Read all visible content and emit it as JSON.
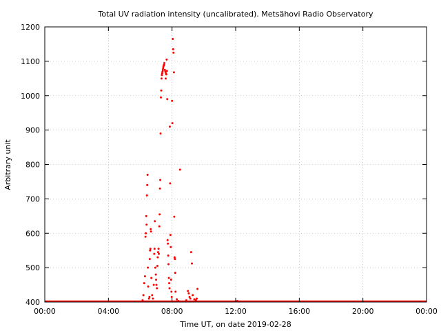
{
  "chart_data": {
    "type": "scatter",
    "title": "Total UV radiation intensity (uncalibrated). Metsähovi Radio Observatory",
    "xlabel": "Time UT, on date 2019-02-28",
    "ylabel": "Arbitrary unit",
    "xlim": [
      0,
      24
    ],
    "ylim": [
      400,
      1200
    ],
    "x_ticks": [
      {
        "value": 0,
        "label": "00:00"
      },
      {
        "value": 4,
        "label": "04:00"
      },
      {
        "value": 8,
        "label": "08:00"
      },
      {
        "value": 12,
        "label": "12:00"
      },
      {
        "value": 16,
        "label": "16:00"
      },
      {
        "value": 20,
        "label": "20:00"
      },
      {
        "value": 24,
        "label": "00:00"
      }
    ],
    "y_ticks": [
      {
        "value": 400,
        "label": "400"
      },
      {
        "value": 500,
        "label": "500"
      },
      {
        "value": 600,
        "label": "600"
      },
      {
        "value": 700,
        "label": "700"
      },
      {
        "value": 800,
        "label": "800"
      },
      {
        "value": 900,
        "label": "900"
      },
      {
        "value": 1000,
        "label": "1000"
      },
      {
        "value": 1100,
        "label": "1100"
      },
      {
        "value": 1200,
        "label": "1200"
      }
    ],
    "grid": true,
    "marker_color": "#ff0000",
    "baseline": {
      "value": 400,
      "x_from": 0,
      "x_to": 24
    },
    "points": [
      [
        6.15,
        405
      ],
      [
        6.2,
        420
      ],
      [
        6.25,
        455
      ],
      [
        6.3,
        475
      ],
      [
        6.33,
        590
      ],
      [
        6.35,
        600
      ],
      [
        6.38,
        650
      ],
      [
        6.4,
        625
      ],
      [
        6.42,
        710
      ],
      [
        6.44,
        740
      ],
      [
        6.46,
        770
      ],
      [
        6.48,
        500
      ],
      [
        6.5,
        445
      ],
      [
        6.55,
        410
      ],
      [
        6.58,
        415
      ],
      [
        6.6,
        525
      ],
      [
        6.62,
        550
      ],
      [
        6.64,
        555
      ],
      [
        6.66,
        612
      ],
      [
        6.68,
        605
      ],
      [
        6.7,
        470
      ],
      [
        6.75,
        420
      ],
      [
        6.8,
        410
      ],
      [
        6.85,
        450
      ],
      [
        6.88,
        540
      ],
      [
        6.9,
        555
      ],
      [
        6.92,
        635
      ],
      [
        6.95,
        500
      ],
      [
        6.98,
        480
      ],
      [
        7.0,
        465
      ],
      [
        7.02,
        450
      ],
      [
        7.05,
        440
      ],
      [
        7.08,
        505
      ],
      [
        7.1,
        530
      ],
      [
        7.12,
        545
      ],
      [
        7.15,
        555
      ],
      [
        7.17,
        540
      ],
      [
        7.2,
        620
      ],
      [
        7.22,
        655
      ],
      [
        7.24,
        730
      ],
      [
        7.26,
        755
      ],
      [
        7.28,
        890
      ],
      [
        7.3,
        995
      ],
      [
        7.32,
        1015
      ],
      [
        7.34,
        1050
      ],
      [
        7.36,
        1060
      ],
      [
        7.38,
        1065
      ],
      [
        7.4,
        1070
      ],
      [
        7.42,
        1075
      ],
      [
        7.44,
        1080
      ],
      [
        7.46,
        1085
      ],
      [
        7.48,
        1088
      ],
      [
        7.5,
        1090
      ],
      [
        7.52,
        1095
      ],
      [
        7.55,
        1075
      ],
      [
        7.58,
        1070
      ],
      [
        7.6,
        1050
      ],
      [
        7.62,
        1065
      ],
      [
        7.64,
        1062
      ],
      [
        7.66,
        1105
      ],
      [
        7.68,
        1072
      ],
      [
        7.7,
        990
      ],
      [
        7.72,
        580
      ],
      [
        7.74,
        570
      ],
      [
        7.76,
        535
      ],
      [
        7.78,
        510
      ],
      [
        7.8,
        470
      ],
      [
        7.82,
        455
      ],
      [
        7.84,
        440
      ],
      [
        7.86,
        910
      ],
      [
        7.88,
        745
      ],
      [
        7.9,
        595
      ],
      [
        7.92,
        560
      ],
      [
        7.94,
        465
      ],
      [
        7.96,
        430
      ],
      [
        7.98,
        415
      ],
      [
        8.0,
        985
      ],
      [
        8.02,
        920
      ],
      [
        8.05,
        1165
      ],
      [
        8.07,
        1135
      ],
      [
        8.09,
        1125
      ],
      [
        8.12,
        1068
      ],
      [
        8.14,
        648
      ],
      [
        8.16,
        530
      ],
      [
        8.18,
        525
      ],
      [
        8.2,
        485
      ],
      [
        8.22,
        430
      ],
      [
        8.3,
        408
      ],
      [
        8.4,
        403
      ],
      [
        8.5,
        785
      ],
      [
        8.9,
        405
      ],
      [
        9.0,
        432
      ],
      [
        9.05,
        425
      ],
      [
        9.1,
        415
      ],
      [
        9.15,
        410
      ],
      [
        9.2,
        545
      ],
      [
        9.25,
        512
      ],
      [
        9.3,
        420
      ],
      [
        9.4,
        408
      ],
      [
        9.5,
        405
      ],
      [
        9.55,
        410
      ],
      [
        9.6,
        438
      ],
      [
        12.1,
        403
      ]
    ]
  }
}
